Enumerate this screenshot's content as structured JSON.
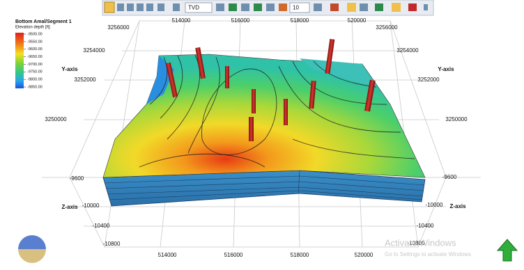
{
  "toolbar": {
    "view_mode": "TVD",
    "size": "10"
  },
  "legend": {
    "title": "Bottom Amal/Segment 1",
    "subtitle": "Elevation depth [ft]",
    "ticks": [
      "-9500.00",
      "-9550.00",
      "-9600.00",
      "-9650.00",
      "-9700.00",
      "-9750.00",
      "-9800.00",
      "-9850.00"
    ]
  },
  "axes": {
    "y_left": {
      "label": "Y-axis",
      "ticks": [
        "3256000",
        "3254000",
        "3252000",
        "3250000"
      ]
    },
    "y_right": {
      "label": "Y-axis",
      "ticks": [
        "3256000",
        "3254000",
        "3252000",
        "3250000"
      ]
    },
    "x_top": {
      "ticks": [
        "514000",
        "516000",
        "518000",
        "520000"
      ]
    },
    "x_bottom": {
      "ticks": [
        "514000",
        "516000",
        "518000",
        "520000"
      ]
    },
    "z_left": {
      "label": "Z-axis",
      "ticks": [
        "-9600",
        "-10000",
        "-10400",
        "-10800"
      ]
    },
    "z_right": {
      "label": "Z-axis",
      "ticks": [
        "-9600",
        "-10000",
        "-10400",
        "-10800"
      ]
    }
  },
  "watermark": {
    "title": "Activate Windows",
    "subtitle": "Go to Settings to activate Windows"
  }
}
